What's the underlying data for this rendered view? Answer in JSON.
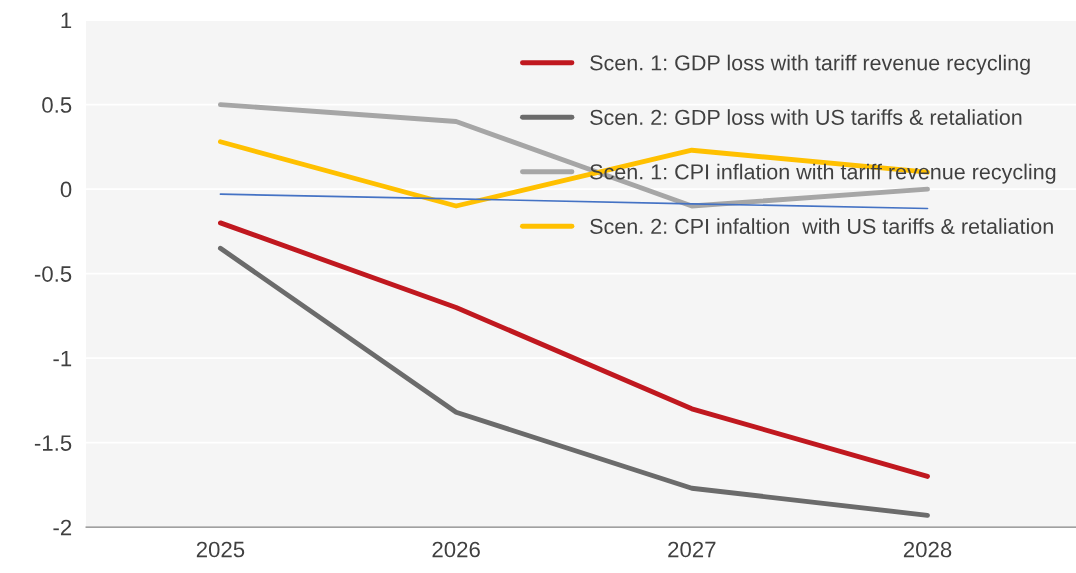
{
  "chart_data": {
    "type": "line",
    "categories": [
      "2025",
      "2026",
      "2027",
      "2028"
    ],
    "series": [
      {
        "name": "Scen. 1: GDP loss with tariff revenue recycling",
        "color": "#c0181f",
        "values": [
          -0.2,
          -0.7,
          -1.3,
          -1.7
        ]
      },
      {
        "name": "Scen. 2: GDP loss with US tariffs & retaliation",
        "color": "#6b6b6b",
        "values": [
          -0.35,
          -1.32,
          -1.77,
          -1.93
        ]
      },
      {
        "name": "Scen. 1: CPI inflation with tariff revenue recycling",
        "color": "#a6a6a6",
        "values": [
          0.5,
          0.4,
          -0.1,
          0.0
        ]
      },
      {
        "name": "Scen. 2: CPI infaltion  with US tariffs & retaliation",
        "color": "#ffc000",
        "values": [
          0.28,
          -0.1,
          0.23,
          0.1
        ]
      },
      {
        "color": "#4472c4",
        "values": [
          -0.03,
          -0.058,
          -0.087,
          -0.115
        ]
      }
    ],
    "ylim": [
      -2,
      1
    ],
    "yticks": [
      -2,
      -1.5,
      -1,
      -0.5,
      0,
      0.5,
      1
    ],
    "grid": "y",
    "legend": "top right",
    "marker": "none",
    "line_style": "solid"
  }
}
